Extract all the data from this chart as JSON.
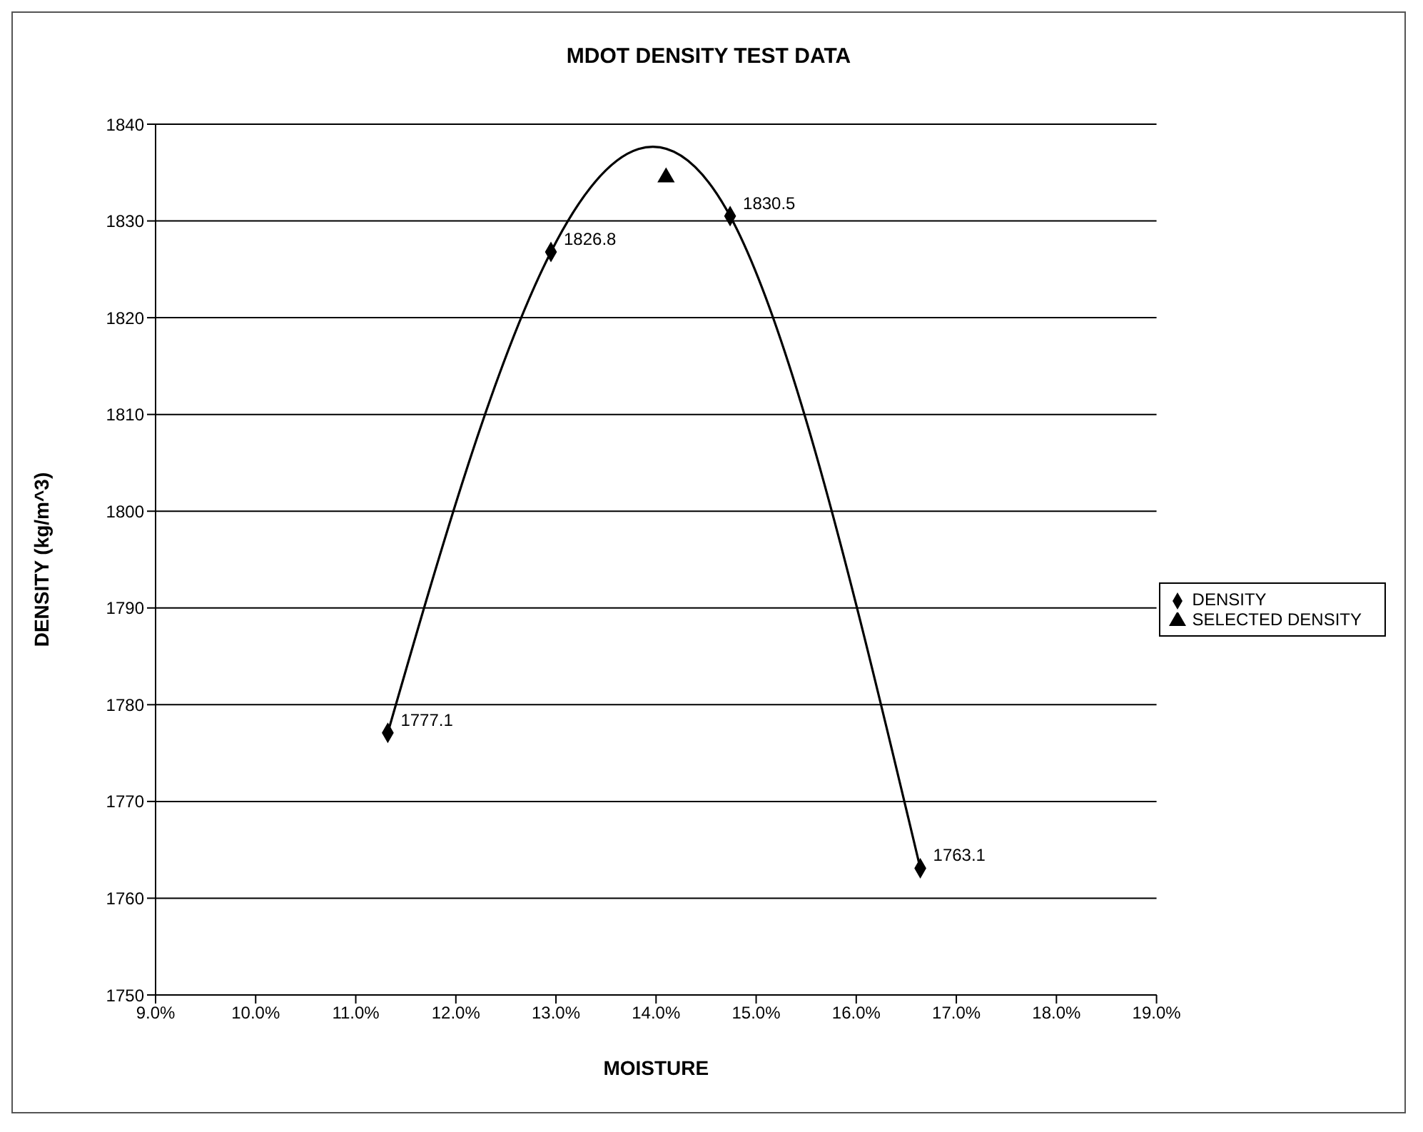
{
  "chart_data": {
    "type": "line",
    "title": "MDOT DENSITY TEST DATA",
    "xlabel": "MOISTURE",
    "ylabel": "DENSITY (kg/m^3)",
    "xlim": [
      9,
      19
    ],
    "xticks": [
      {
        "value": 9,
        "label": "9.0%"
      },
      {
        "value": 10,
        "label": "10.0%"
      },
      {
        "value": 11,
        "label": "11.0%"
      },
      {
        "value": 12,
        "label": "12.0%"
      },
      {
        "value": 13,
        "label": "13.0%"
      },
      {
        "value": 14,
        "label": "14.0%"
      },
      {
        "value": 15,
        "label": "15.0%"
      },
      {
        "value": 16,
        "label": "16.0%"
      },
      {
        "value": 17,
        "label": "17.0%"
      },
      {
        "value": 18,
        "label": "18.0%"
      },
      {
        "value": 19,
        "label": "19.0%"
      }
    ],
    "ylim": [
      1750,
      1840
    ],
    "yticks": [
      1750,
      1760,
      1770,
      1780,
      1790,
      1800,
      1810,
      1820,
      1830,
      1840
    ],
    "grid": "y",
    "legend": "right",
    "series": [
      {
        "name": "DENSITY",
        "color": "#000000",
        "marker": "diamond",
        "line_style": "solid",
        "x": [
          11.32,
          12.95,
          14.74,
          16.64
        ],
        "values": [
          1777.1,
          1826.8,
          1830.5,
          1763.1
        ],
        "value_labels": [
          "1777.1",
          "1826.8",
          "1830.5",
          "1763.1"
        ]
      },
      {
        "name": "SELECTED DENSITY",
        "type": "scatter",
        "color": "#000000",
        "marker": "triangle",
        "x": [
          14.1
        ],
        "values": [
          1834.5
        ]
      }
    ]
  }
}
